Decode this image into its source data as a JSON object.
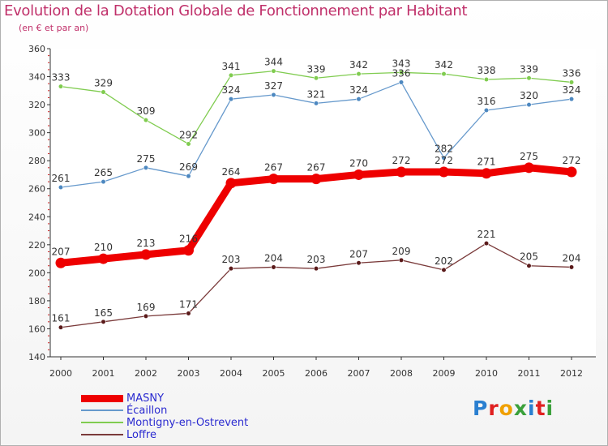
{
  "header": {
    "title": "Evolution de la Dotation Globale de Fonctionnement par Habitant",
    "subtitle": "(en € et par an)"
  },
  "brand": {
    "logo_text": "Proxiti",
    "letter_colors": [
      "#2a7fd0",
      "#e02020",
      "#f0a000",
      "#3aa03a",
      "#2a7fd0",
      "#e02020",
      "#3aa03a"
    ]
  },
  "chart_data": {
    "type": "line",
    "title": "Evolution de la Dotation Globale de Fonctionnement par Habitant",
    "subtitle": "(en € et par an)",
    "x": [
      2000,
      2001,
      2002,
      2003,
      2004,
      2005,
      2006,
      2007,
      2008,
      2009,
      2010,
      2011,
      2012
    ],
    "ylim": [
      140,
      360
    ],
    "yticks": [
      140,
      160,
      180,
      200,
      220,
      240,
      260,
      280,
      300,
      320,
      340,
      360
    ],
    "grid": false,
    "legend_position": "bottom-left",
    "series": [
      {
        "name": "Montigny-en-Ostrevent",
        "color": "#80cc50",
        "point_color": "#80cc50",
        "values": [
          333,
          329,
          309,
          292,
          341,
          344,
          339,
          342,
          343,
          342,
          338,
          339,
          336
        ]
      },
      {
        "name": "Écaillon",
        "color": "#6699cc",
        "point_color": "#4d88c0",
        "values": [
          261,
          265,
          275,
          269,
          324,
          327,
          321,
          324,
          336,
          282,
          316,
          320,
          324
        ]
      },
      {
        "name": "Loffre",
        "color": "#7a3a3a",
        "point_color": "#5a1a1a",
        "values": [
          161,
          165,
          169,
          171,
          203,
          204,
          203,
          207,
          209,
          202,
          221,
          205,
          204
        ]
      },
      {
        "name": "MASNY",
        "color": "#ee0000",
        "point_color": "#ee0000",
        "values": [
          207,
          210,
          213,
          216,
          264,
          267,
          267,
          270,
          272,
          272,
          271,
          275,
          272
        ]
      }
    ],
    "legend_order": [
      "MASNY",
      "Écaillon",
      "Montigny-en-Ostrevent",
      "Loffre"
    ]
  }
}
